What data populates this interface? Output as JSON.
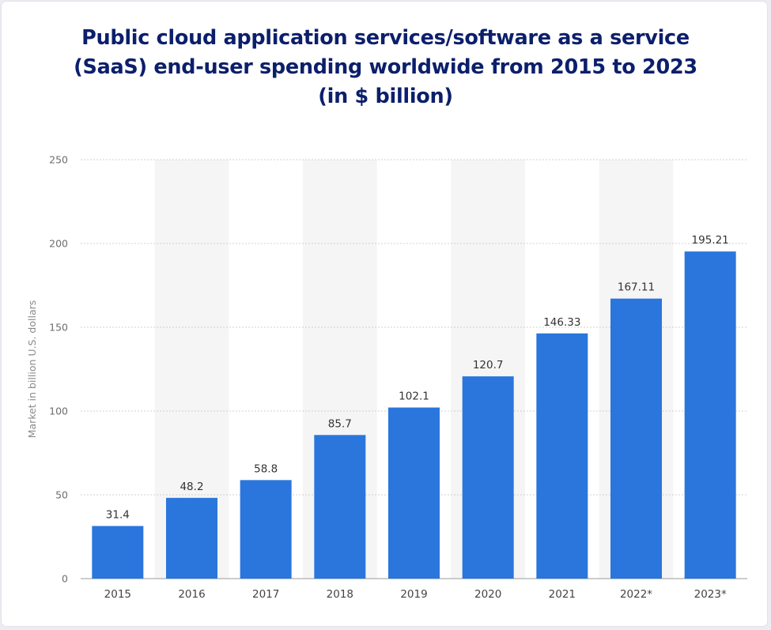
{
  "chart_data": {
    "type": "bar",
    "title_lines": [
      "Public cloud application services/software as a service",
      "(SaaS) end-user spending worldwide from 2015 to 2023",
      "(in $ billion)"
    ],
    "categories": [
      "2015",
      "2016",
      "2017",
      "2018",
      "2019",
      "2020",
      "2021",
      "2022*",
      "2023*"
    ],
    "values": [
      31.4,
      48.2,
      58.8,
      85.7,
      102.1,
      120.7,
      146.33,
      167.11,
      195.21
    ],
    "value_labels": [
      "31.4",
      "48.2",
      "58.8",
      "85.7",
      "102.1",
      "120.7",
      "146.33",
      "167.11",
      "195.21"
    ],
    "ylabel": "Market in billion U.S. dollars",
    "xlabel": "",
    "ylim": [
      0,
      250
    ],
    "yticks": [
      0,
      50,
      100,
      150,
      200,
      250
    ],
    "grid": true,
    "bar_color": "#2a76dc",
    "band_color": "#f5f5f5",
    "title_color": "#0b1f6b"
  }
}
